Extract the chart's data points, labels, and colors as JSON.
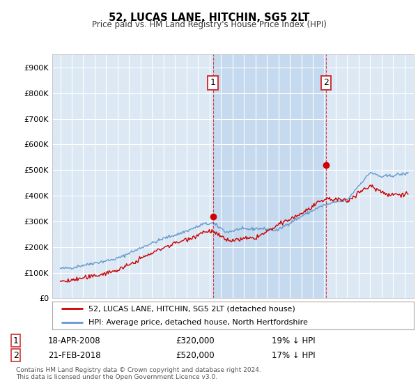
{
  "title": "52, LUCAS LANE, HITCHIN, SG5 2LT",
  "subtitle": "Price paid vs. HM Land Registry's House Price Index (HPI)",
  "legend_label_red": "52, LUCAS LANE, HITCHIN, SG5 2LT (detached house)",
  "legend_label_blue": "HPI: Average price, detached house, North Hertfordshire",
  "annotation1_label": "1",
  "annotation1_date": "18-APR-2008",
  "annotation1_price": "£320,000",
  "annotation1_hpi": "19% ↓ HPI",
  "annotation2_label": "2",
  "annotation2_date": "21-FEB-2018",
  "annotation2_price": "£520,000",
  "annotation2_hpi": "17% ↓ HPI",
  "footnote": "Contains HM Land Registry data © Crown copyright and database right 2024.\nThis data is licensed under the Open Government Licence v3.0.",
  "ylim": [
    0,
    950000
  ],
  "yticks": [
    0,
    100000,
    200000,
    300000,
    400000,
    500000,
    600000,
    700000,
    800000,
    900000
  ],
  "background_color": "#ffffff",
  "plot_bg_color": "#dce9f5",
  "shade_color": "#c5d9ef",
  "grid_color": "#ffffff",
  "red_line_color": "#cc0000",
  "blue_line_color": "#6699cc",
  "sale1_x": 2008.3,
  "sale1_y": 320000,
  "sale2_x": 2018.15,
  "sale2_y": 520000,
  "vline1_x": 2008.3,
  "vline2_x": 2018.15,
  "xmin": 1995.0,
  "xmax": 2025.3
}
